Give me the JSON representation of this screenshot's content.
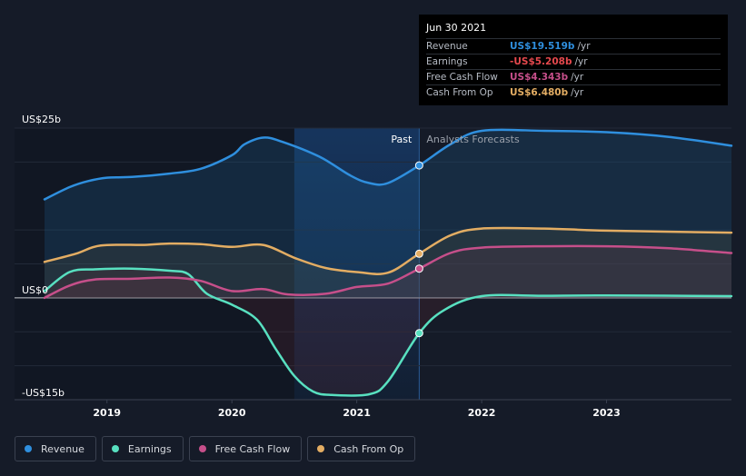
{
  "chart_data": {
    "type": "area",
    "y_ticks": [
      {
        "label": "US$25b",
        "value": 25
      },
      {
        "label": "US$0",
        "value": 0
      },
      {
        "label": "-US$15b",
        "value": -15
      }
    ],
    "ylim": [
      -15,
      25
    ],
    "xlim": [
      2018.5,
      2024.0
    ],
    "x_ticks": [
      "2019",
      "2020",
      "2021",
      "2022",
      "2023"
    ],
    "x_tick_values": [
      2019,
      2020,
      2021,
      2022,
      2023
    ],
    "past_end": 2021.5,
    "highlight_start": 2020.5,
    "past_label": "Past",
    "forecast_label": "Analysts Forecasts",
    "series": [
      {
        "name": "Revenue",
        "color": "#2f8fde",
        "points": [
          [
            2018.5,
            14.5
          ],
          [
            2018.7,
            16.3
          ],
          [
            2018.85,
            17.2
          ],
          [
            2019.0,
            17.7
          ],
          [
            2019.2,
            17.8
          ],
          [
            2019.5,
            18.3
          ],
          [
            2019.75,
            19.0
          ],
          [
            2020.0,
            21.0
          ],
          [
            2020.1,
            22.6
          ],
          [
            2020.25,
            23.6
          ],
          [
            2020.4,
            23.0
          ],
          [
            2020.7,
            20.8
          ],
          [
            2020.95,
            18.0
          ],
          [
            2021.1,
            16.9
          ],
          [
            2021.25,
            16.9
          ],
          [
            2021.5,
            19.5
          ],
          [
            2021.75,
            22.6
          ],
          [
            2022.0,
            24.6
          ],
          [
            2022.5,
            24.6
          ],
          [
            2023.0,
            24.4
          ],
          [
            2023.5,
            23.7
          ],
          [
            2024.0,
            22.4
          ]
        ]
      },
      {
        "name": "Earnings",
        "color": "#58e0c0",
        "points": [
          [
            2018.5,
            1.0
          ],
          [
            2018.7,
            3.8
          ],
          [
            2018.9,
            4.2
          ],
          [
            2019.2,
            4.3
          ],
          [
            2019.5,
            4.0
          ],
          [
            2019.65,
            3.5
          ],
          [
            2019.8,
            0.6
          ],
          [
            2020.0,
            -1.0
          ],
          [
            2020.2,
            -3.2
          ],
          [
            2020.35,
            -7.5
          ],
          [
            2020.5,
            -11.5
          ],
          [
            2020.65,
            -13.8
          ],
          [
            2020.8,
            -14.3
          ],
          [
            2021.1,
            -14.2
          ],
          [
            2021.25,
            -12.3
          ],
          [
            2021.5,
            -5.2
          ],
          [
            2021.7,
            -1.8
          ],
          [
            2022.0,
            0.25
          ],
          [
            2022.5,
            0.3
          ],
          [
            2023.0,
            0.35
          ],
          [
            2024.0,
            0.25
          ]
        ]
      },
      {
        "name": "Free Cash Flow",
        "color": "#c64f8a",
        "points": [
          [
            2018.5,
            0.0
          ],
          [
            2018.7,
            1.8
          ],
          [
            2018.9,
            2.7
          ],
          [
            2019.2,
            2.8
          ],
          [
            2019.5,
            3.0
          ],
          [
            2019.75,
            2.5
          ],
          [
            2020.0,
            1.0
          ],
          [
            2020.25,
            1.3
          ],
          [
            2020.45,
            0.5
          ],
          [
            2020.75,
            0.6
          ],
          [
            2021.0,
            1.6
          ],
          [
            2021.25,
            2.1
          ],
          [
            2021.5,
            4.3
          ],
          [
            2021.75,
            6.6
          ],
          [
            2022.0,
            7.4
          ],
          [
            2022.5,
            7.6
          ],
          [
            2023.0,
            7.6
          ],
          [
            2023.5,
            7.3
          ],
          [
            2024.0,
            6.6
          ]
        ]
      },
      {
        "name": "Cash From Op",
        "color": "#e3ad63",
        "points": [
          [
            2018.5,
            5.3
          ],
          [
            2018.75,
            6.5
          ],
          [
            2018.95,
            7.7
          ],
          [
            2019.3,
            7.8
          ],
          [
            2019.5,
            8.0
          ],
          [
            2019.75,
            7.9
          ],
          [
            2020.0,
            7.5
          ],
          [
            2020.25,
            7.8
          ],
          [
            2020.5,
            5.9
          ],
          [
            2020.75,
            4.4
          ],
          [
            2021.0,
            3.8
          ],
          [
            2021.25,
            3.7
          ],
          [
            2021.5,
            6.5
          ],
          [
            2021.75,
            9.2
          ],
          [
            2022.0,
            10.2
          ],
          [
            2022.5,
            10.2
          ],
          [
            2023.0,
            9.9
          ],
          [
            2024.0,
            9.6
          ]
        ]
      }
    ]
  },
  "tooltip": {
    "date": "Jun 30 2021",
    "rows": [
      {
        "label": "Revenue",
        "value": "US$19.519b",
        "unit": "/yr",
        "color": "#2f8fde"
      },
      {
        "label": "Earnings",
        "value": "-US$5.208b",
        "unit": "/yr",
        "color": "#e5484d"
      },
      {
        "label": "Free Cash Flow",
        "value": "US$4.343b",
        "unit": "/yr",
        "color": "#c64f8a"
      },
      {
        "label": "Cash From Op",
        "value": "US$6.480b",
        "unit": "/yr",
        "color": "#e3ad63"
      }
    ]
  },
  "legend": [
    {
      "label": "Revenue",
      "color": "#2f8fde"
    },
    {
      "label": "Earnings",
      "color": "#58e0c0"
    },
    {
      "label": "Free Cash Flow",
      "color": "#c64f8a"
    },
    {
      "label": "Cash From Op",
      "color": "#e3ad63"
    }
  ]
}
